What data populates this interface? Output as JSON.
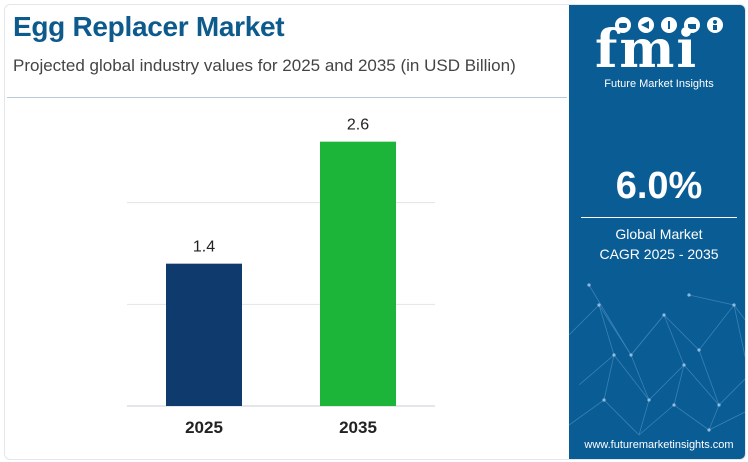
{
  "header": {
    "title": "Egg Replacer Market",
    "subtitle": "Projected global industry values for 2025 and 2035 (in USD Billion)"
  },
  "chart_data": {
    "type": "bar",
    "categories": [
      "2025",
      "2035"
    ],
    "values": [
      1.4,
      2.6
    ],
    "data_labels": [
      "1.4",
      "2.6"
    ],
    "title": "Egg Replacer Market",
    "subtitle": "Projected global industry values for 2025 and 2035 (in USD Billion)",
    "xlabel": "",
    "ylabel": "",
    "ylim": [
      0,
      3.0
    ],
    "grid": true,
    "legend": "none",
    "colors": [
      "#0f3a6e",
      "#1db43a"
    ]
  },
  "panel": {
    "logo_text": "fmi",
    "logo_subtitle": "Future Market Insights",
    "cagr_value": "6.0%",
    "cagr_label_line1": "Global Market",
    "cagr_label_line2": "CAGR 2025 - 2035",
    "website": "www.futuremarketinsights.com",
    "background_color": "#0a5c95",
    "logo_icons": [
      "cow-icon",
      "fish-icon",
      "plant-icon",
      "cake-icon",
      "person-icon"
    ]
  }
}
